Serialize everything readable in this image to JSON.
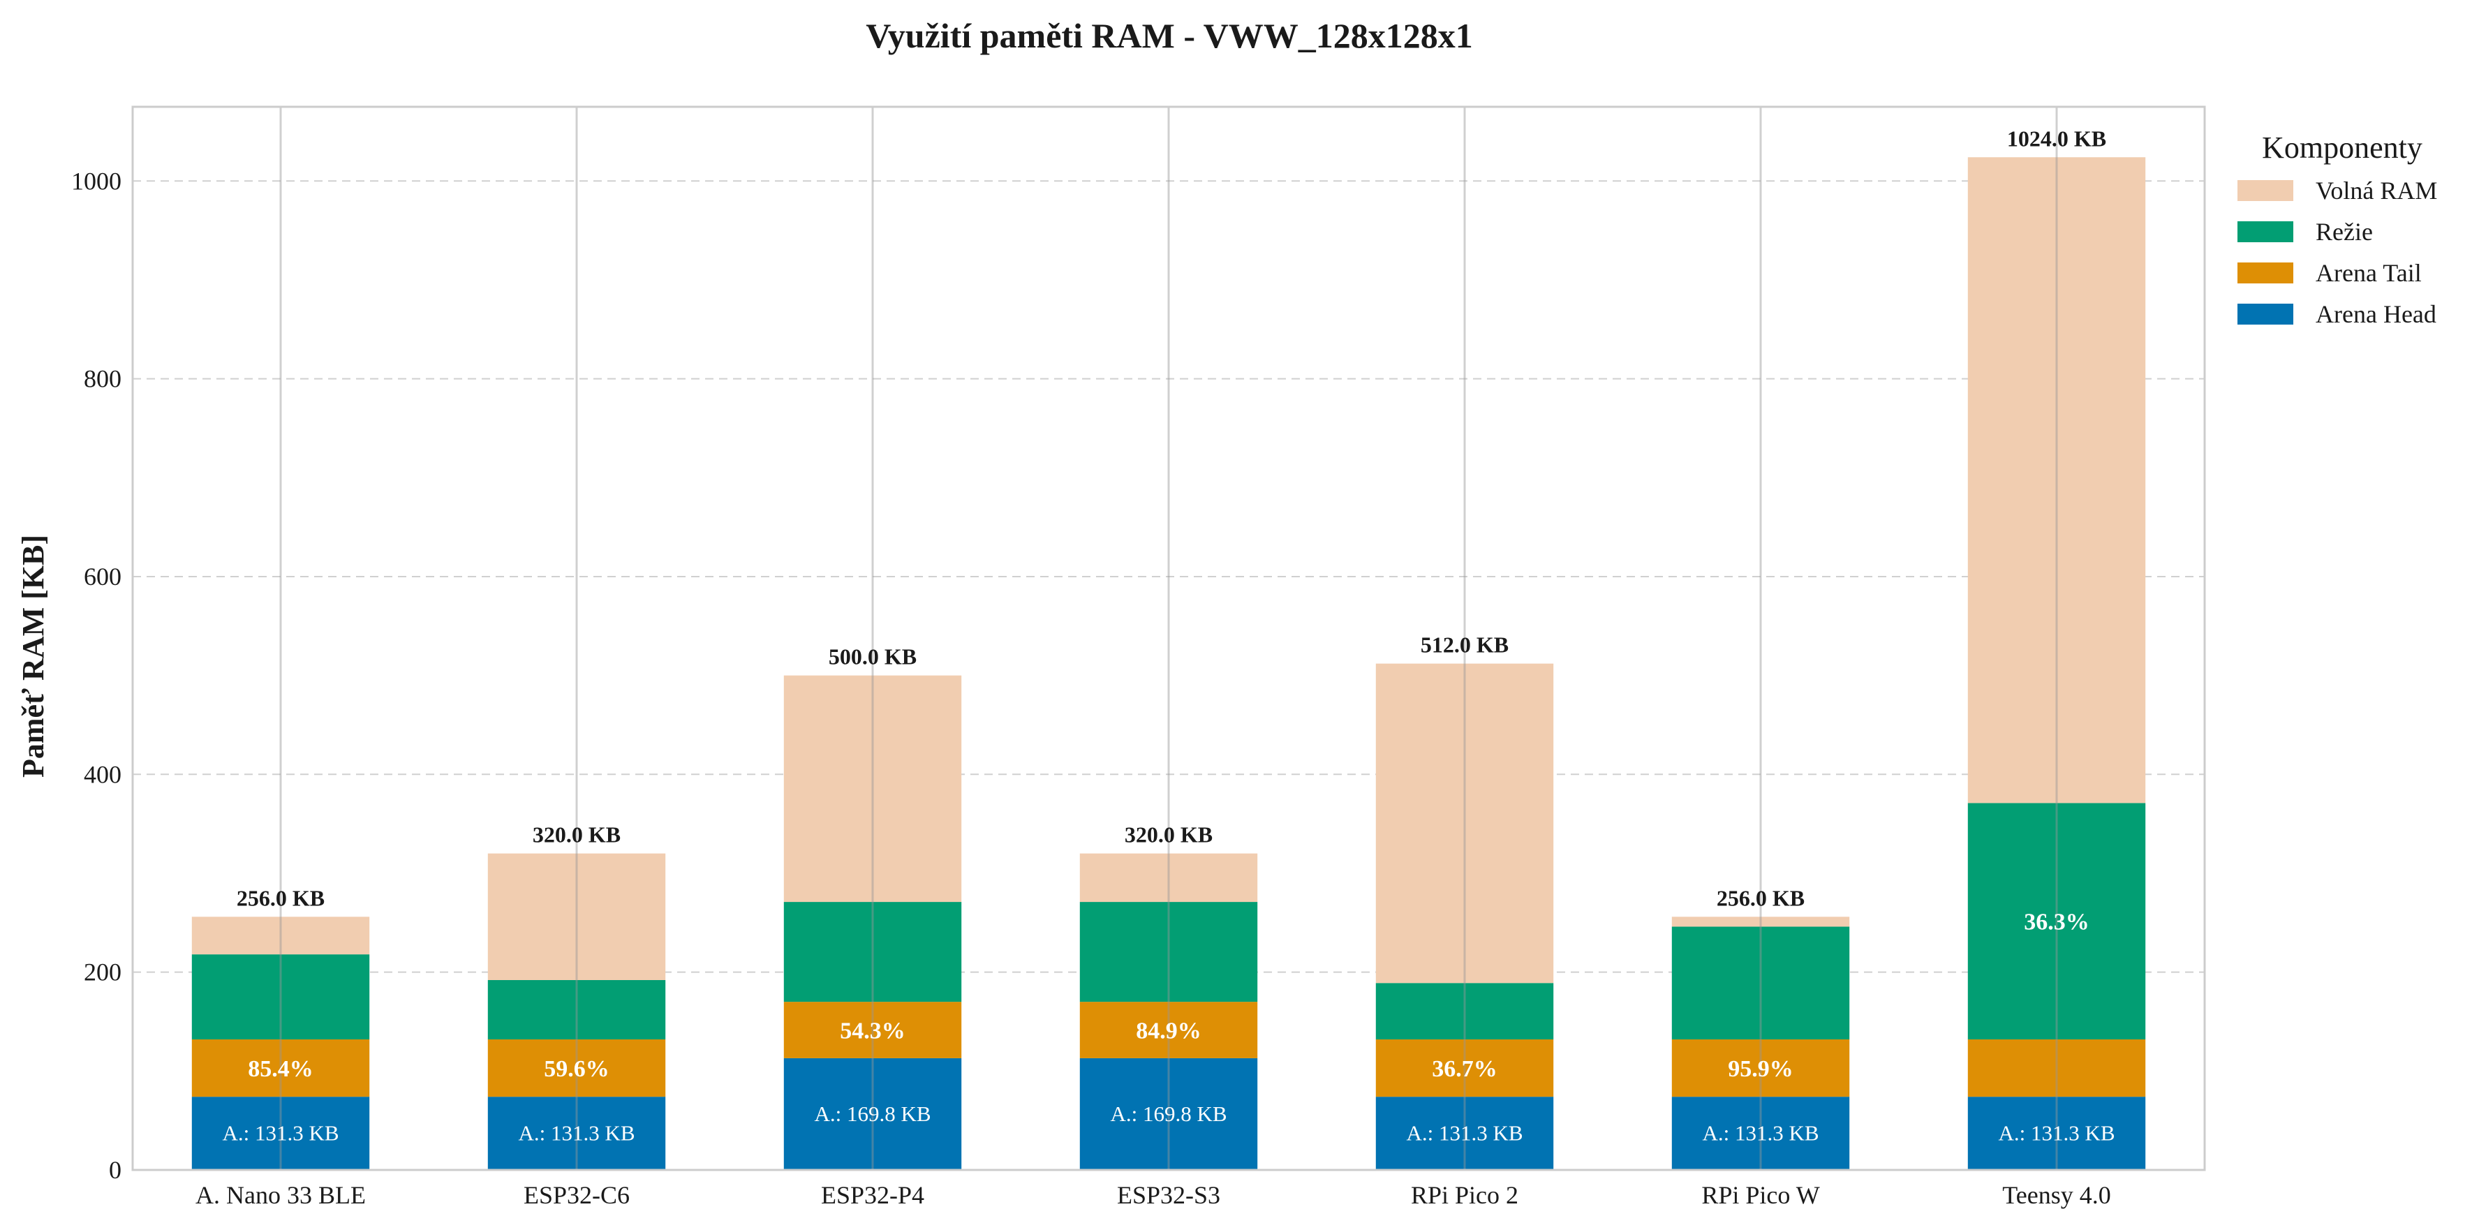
{
  "chart_data": {
    "type": "bar",
    "stacked": true,
    "title": "Využití paměti RAM - VWW_128x128x1",
    "xlabel": "",
    "ylabel": "Paměť RAM [KB]",
    "ylim": [
      0,
      1075
    ],
    "yticks": [
      0,
      200,
      400,
      600,
      800,
      1000
    ],
    "grid": "horizontal dashed, vertical solid",
    "categories": [
      "A. Nano 33 BLE",
      "ESP32-C6",
      "ESP32-P4",
      "ESP32-S3",
      "RPi Pico 2",
      "RPi Pico W",
      "Teensy 4.0"
    ],
    "series": [
      {
        "name": "Arena Head",
        "color": "#0173b2",
        "values": [
          74,
          74,
          113,
          113,
          74,
          74,
          74
        ]
      },
      {
        "name": "Arena Tail",
        "color": "#de8f05",
        "values": [
          58,
          58,
          57,
          57,
          58,
          58,
          58
        ]
      },
      {
        "name": "Režie",
        "color": "#029e73",
        "values": [
          86,
          60,
          101,
          101,
          57,
          114,
          239
        ]
      },
      {
        "name": "Volná RAM",
        "color": "#f1cdb0",
        "values": [
          38,
          128,
          229,
          49,
          323,
          10,
          653
        ]
      }
    ],
    "totals": [
      256.0,
      320.0,
      500.0,
      320.0,
      512.0,
      256.0,
      1024.0
    ],
    "total_labels": [
      "256.0 KB",
      "320.0 KB",
      "500.0 KB",
      "320.0 KB",
      "512.0 KB",
      "256.0 KB",
      "1024.0 KB"
    ],
    "usage_labels": [
      "85.4%",
      "59.6%",
      "54.3%",
      "84.9%",
      "36.7%",
      "95.9%",
      "36.3%"
    ],
    "usage_label_segment": [
      "Arena Tail",
      "Arena Tail",
      "Arena Tail",
      "Arena Tail",
      "Arena Tail",
      "Arena Tail",
      "Režie"
    ],
    "arena_labels": [
      "A.: 131.3 KB",
      "A.: 131.3 KB",
      "A.: 169.8 KB",
      "A.: 169.8 KB",
      "A.: 131.3 KB",
      "A.: 131.3 KB",
      "A.: 131.3 KB"
    ],
    "legend": {
      "title": "Komponenty",
      "placement": "outside right, top",
      "entries": [
        "Volná RAM",
        "Režie",
        "Arena Tail",
        "Arena Head"
      ]
    }
  }
}
